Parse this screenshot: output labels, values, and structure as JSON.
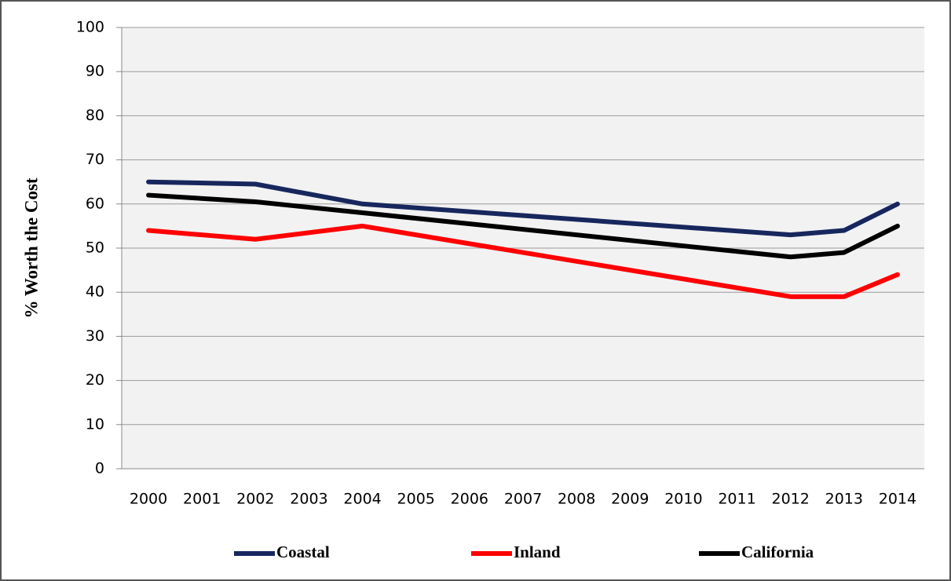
{
  "chart_data": {
    "type": "line",
    "y_label": "% Worth the Cost",
    "x": [
      2000,
      2002,
      2004,
      2012,
      2013,
      2014
    ],
    "xlim": [
      1999.5,
      2014.5
    ],
    "xticks": [
      2000,
      2001,
      2002,
      2003,
      2004,
      2005,
      2006,
      2007,
      2008,
      2009,
      2010,
      2011,
      2012,
      2013,
      2014
    ],
    "ylim": [
      0,
      100
    ],
    "yticks": [
      0,
      10,
      20,
      30,
      40,
      50,
      60,
      70,
      80,
      90,
      100
    ],
    "grid": true,
    "legend": "bottom",
    "series": [
      {
        "name": "Coastal",
        "color": "#17275e",
        "values": [
          65,
          64.5,
          60,
          53,
          54,
          60
        ]
      },
      {
        "name": "Inland",
        "color": "#ff0000",
        "values": [
          54,
          52,
          55,
          39,
          39,
          44
        ]
      },
      {
        "name": "California",
        "color": "#000000",
        "values": [
          62,
          60.5,
          58,
          48,
          49,
          55
        ]
      }
    ]
  }
}
